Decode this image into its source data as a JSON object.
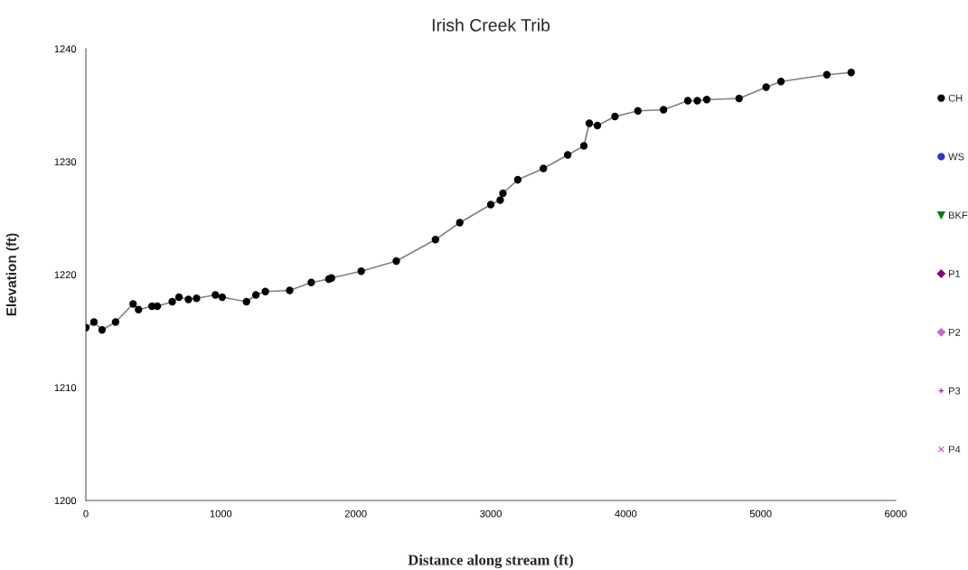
{
  "chart_data": {
    "type": "line",
    "title": "Irish Creek Trib",
    "xlabel": "Distance along stream (ft)",
    "ylabel": "Elevation (ft)",
    "xlim": [
      0,
      6000
    ],
    "xticks": [
      0,
      1000,
      2000,
      3000,
      4000,
      5000,
      6000
    ],
    "ylim": [
      1200,
      1240
    ],
    "yticks": [
      1200,
      1210,
      1220,
      1230,
      1240
    ],
    "grid": false,
    "legend": "right",
    "marker": "circle",
    "line_style": "solid",
    "series": [
      {
        "name": "CH",
        "color": "#000000",
        "x": [
          0,
          60,
          120,
          220,
          350,
          390,
          490,
          530,
          640,
          690,
          760,
          820,
          960,
          1010,
          1190,
          1260,
          1330,
          1510,
          1670,
          1800,
          1820,
          2040,
          2300,
          2590,
          2770,
          3000,
          3070,
          3090,
          3200,
          3390,
          3570,
          3690,
          3730,
          3790,
          3920,
          4090,
          4280,
          4460,
          4530,
          4600,
          4840,
          5040,
          5150,
          5490,
          5670
        ],
        "values": [
          1215.3,
          1215.8,
          1215.1,
          1215.8,
          1217.4,
          1216.9,
          1217.2,
          1217.2,
          1217.6,
          1218.0,
          1217.8,
          1217.9,
          1218.2,
          1218.0,
          1217.6,
          1218.2,
          1218.5,
          1218.6,
          1219.3,
          1219.6,
          1219.7,
          1220.3,
          1221.2,
          1223.1,
          1224.6,
          1226.2,
          1226.6,
          1227.2,
          1228.4,
          1229.4,
          1230.6,
          1231.4,
          1233.4,
          1233.2,
          1234.0,
          1234.5,
          1234.6,
          1235.4,
          1235.4,
          1235.5,
          1235.6,
          1236.6,
          1237.1,
          1237.7,
          1237.9
        ]
      },
      {
        "name": "WS",
        "color": "#3333cc",
        "marker": "circle"
      },
      {
        "name": "BKF",
        "color": "#008000",
        "marker": "triangle"
      },
      {
        "name": "P1",
        "color": "#800080",
        "marker": "diamond"
      },
      {
        "name": "P2",
        "color": "#cc66cc",
        "marker": "diamond"
      },
      {
        "name": "P3",
        "color": "#993399",
        "marker": "plus"
      },
      {
        "name": "P4",
        "color": "#cc66cc",
        "marker": "cross"
      }
    ]
  }
}
